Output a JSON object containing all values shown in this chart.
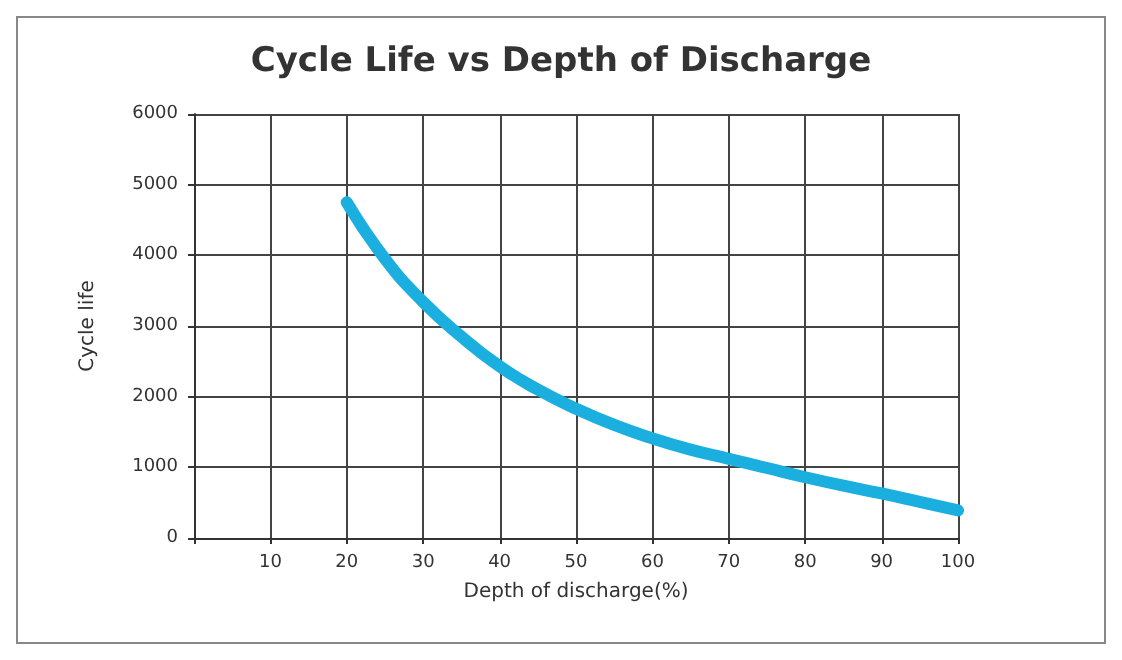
{
  "chart_data": {
    "type": "line",
    "title": "Cycle Life vs Depth of Discharge",
    "xlabel": "Depth of discharge(%)",
    "ylabel": "Cycle life",
    "x": [
      20,
      25,
      30,
      35,
      40,
      45,
      50,
      55,
      60,
      65,
      70,
      75,
      80,
      85,
      90,
      95,
      100
    ],
    "series": [
      {
        "color": "#1aafdf",
        "values": [
          4750,
          3950,
          3340,
          2850,
          2430,
          2100,
          1830,
          1600,
          1410,
          1250,
          1120,
          990,
          860,
          740,
          630,
          510,
          390
        ]
      }
    ],
    "xlim": [
      0,
      100
    ],
    "xticks": [
      {
        "value": 0,
        "label": null
      },
      10,
      20,
      30,
      40,
      50,
      60,
      70,
      80,
      90,
      100
    ],
    "ylim": [
      0,
      6000
    ],
    "yticks": [
      0,
      1000,
      2000,
      3000,
      4000,
      5000,
      6000
    ],
    "grid": true,
    "marker": "none",
    "line_style": "solid"
  }
}
